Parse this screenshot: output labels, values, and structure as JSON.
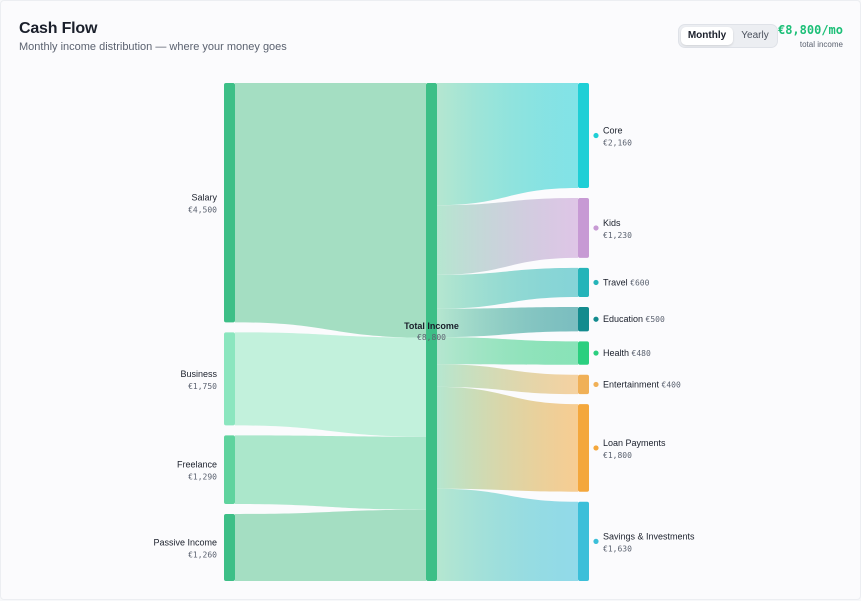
{
  "header": {
    "title": "Cash Flow",
    "subtitle": "Monthly income distribution — where your money goes",
    "toggle": {
      "active": "Monthly",
      "inactive": "Yearly"
    },
    "total_value": "€8,800/mo",
    "total_label": "total income"
  },
  "colors": {
    "income_node": "#3dbf87",
    "income_node_light": "#8be6bf",
    "card_bg": "#fbfbfd"
  },
  "chart_data": {
    "type": "sankey",
    "title": "Cash Flow",
    "center": {
      "name": "Total Income",
      "value": 8800,
      "display": "€8,800"
    },
    "sources": [
      {
        "name": "Salary",
        "value": 4500,
        "display": "€4,500",
        "color": "#3dbf87",
        "flow_color": "#9fdcbf"
      },
      {
        "name": "Business",
        "value": 1750,
        "display": "€1,750",
        "color": "#8be6bf",
        "flow_color": "#bff0da"
      },
      {
        "name": "Freelance",
        "value": 1290,
        "display": "€1,290",
        "color": "#5fd39e",
        "flow_color": "#a7e6c8"
      },
      {
        "name": "Passive Income",
        "value": 1260,
        "display": "€1,260",
        "color": "#3dbf87",
        "flow_color": "#9fdcbf"
      }
    ],
    "targets": [
      {
        "name": "Core",
        "value": 2160,
        "display": "€2,160",
        "color": "#1fcfd6",
        "inline": false
      },
      {
        "name": "Kids",
        "value": 1230,
        "display": "€1,230",
        "color": "#c79ad4",
        "inline": false
      },
      {
        "name": "Travel",
        "value": 600,
        "display": "€600",
        "color": "#25b4b9",
        "inline": true
      },
      {
        "name": "Education",
        "value": 500,
        "display": "€500",
        "color": "#138b8e",
        "inline": true
      },
      {
        "name": "Health",
        "value": 480,
        "display": "€480",
        "color": "#2bcf7f",
        "inline": true
      },
      {
        "name": "Entertainment",
        "value": 400,
        "display": "€400",
        "color": "#f0b057",
        "inline": true
      },
      {
        "name": "Loan Payments",
        "value": 1800,
        "display": "€1,800",
        "color": "#f4a73c",
        "inline": false
      },
      {
        "name": "Savings & Investments",
        "value": 1630,
        "display": "€1,630",
        "color": "#3bbfd9",
        "inline": false
      }
    ]
  }
}
